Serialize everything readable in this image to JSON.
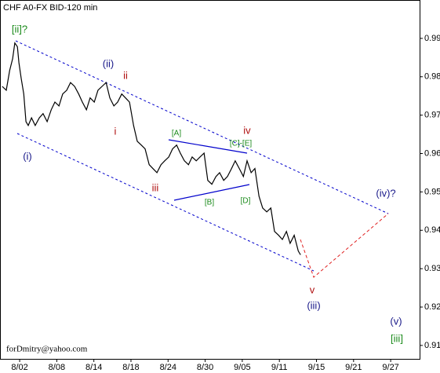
{
  "chart_data": {
    "type": "line",
    "title": "CHF A0-FX BID-120 min",
    "watermark": "forDmitry@yahoo.com",
    "color": "#000000",
    "xlim": [
      -0.53,
      10.78
    ],
    "ylim": [
      0.9065,
      1.0
    ],
    "xticks": [
      {
        "value": 0,
        "label": "8/02"
      },
      {
        "value": 1,
        "label": "8/08"
      },
      {
        "value": 2,
        "label": "8/14"
      },
      {
        "value": 3,
        "label": "8/18"
      },
      {
        "value": 4,
        "label": "8/24"
      },
      {
        "value": 5,
        "label": "8/30"
      },
      {
        "value": 6,
        "label": "9/05"
      },
      {
        "value": 7,
        "label": "9/11"
      },
      {
        "value": 8,
        "label": "9/15"
      },
      {
        "value": 9,
        "label": "9/21"
      },
      {
        "value": 10,
        "label": "9/27"
      }
    ],
    "yticks": [
      0.91,
      0.92,
      0.93,
      0.94,
      0.95,
      0.96,
      0.97,
      0.98,
      0.99
    ],
    "x": [
      -0.47,
      -0.36,
      -0.27,
      -0.19,
      -0.13,
      -0.06,
      -0.02,
      0.04,
      0.11,
      0.17,
      0.23,
      0.32,
      0.42,
      0.53,
      0.63,
      0.74,
      0.85,
      0.95,
      1.06,
      1.16,
      1.27,
      1.37,
      1.48,
      1.59,
      1.69,
      1.8,
      1.9,
      2.01,
      2.11,
      2.22,
      2.33,
      2.43,
      2.54,
      2.64,
      2.75,
      2.85,
      2.96,
      3.07,
      3.17,
      3.28,
      3.38,
      3.49,
      3.59,
      3.7,
      3.81,
      3.91,
      4.02,
      4.12,
      4.23,
      4.33,
      4.44,
      4.55,
      4.65,
      4.76,
      4.86,
      4.97,
      5.07,
      5.18,
      5.29,
      5.39,
      5.5,
      5.6,
      5.71,
      5.81,
      5.92,
      6.03,
      6.13,
      6.24,
      6.34,
      6.45,
      6.55,
      6.66,
      6.77,
      6.87,
      6.98,
      7.08,
      7.19,
      7.29,
      7.4,
      7.51,
      7.57
    ],
    "values": [
      0.9775,
      0.9765,
      0.9816,
      0.9847,
      0.9888,
      0.9878,
      0.9837,
      0.9796,
      0.9755,
      0.9683,
      0.9673,
      0.9693,
      0.9673,
      0.9693,
      0.9704,
      0.9683,
      0.9714,
      0.9734,
      0.9724,
      0.9755,
      0.9765,
      0.9785,
      0.9775,
      0.9755,
      0.9734,
      0.9714,
      0.9745,
      0.9734,
      0.9765,
      0.9775,
      0.9785,
      0.9745,
      0.9724,
      0.9734,
      0.9755,
      0.9745,
      0.9734,
      0.9673,
      0.9632,
      0.9622,
      0.9612,
      0.9571,
      0.9561,
      0.955,
      0.9571,
      0.9581,
      0.9591,
      0.9612,
      0.9622,
      0.9601,
      0.9581,
      0.9571,
      0.9591,
      0.9581,
      0.9591,
      0.9601,
      0.953,
      0.952,
      0.954,
      0.955,
      0.953,
      0.954,
      0.9561,
      0.9581,
      0.9561,
      0.954,
      0.9581,
      0.955,
      0.9561,
      0.9489,
      0.9458,
      0.9448,
      0.9458,
      0.9397,
      0.9387,
      0.9376,
      0.9397,
      0.9366,
      0.9387,
      0.9346,
      0.9336
    ],
    "annotations": [
      "[ii]?",
      "(ii)",
      "ii",
      "i",
      "(i)",
      "iii",
      "[A]",
      "[C]-[E]",
      "[B]",
      "[D]",
      "iv",
      "(iv)?",
      "v",
      "(iii)",
      "(v)",
      "[iii]"
    ]
  }
}
